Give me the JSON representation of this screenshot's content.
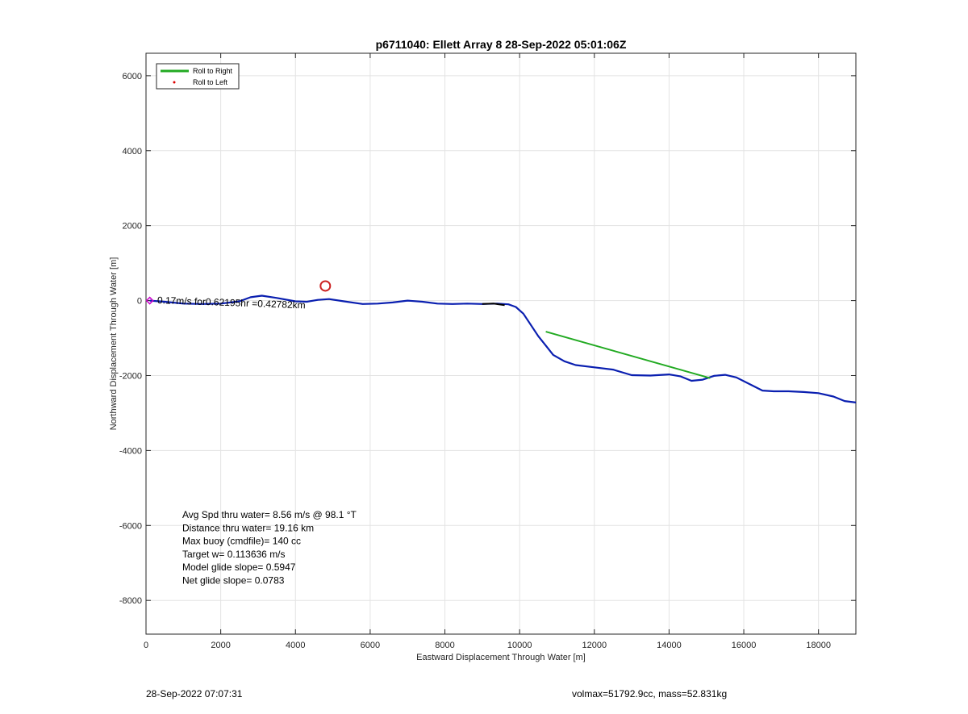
{
  "chart_data": {
    "type": "line",
    "title": "p6711040: Ellett Array 8 28-Sep-2022 05:01:06Z",
    "xlabel": "Eastward Displacement Through Water [m]",
    "ylabel": "Northward Displacement Through Water [m]",
    "xlim": [
      0,
      19000
    ],
    "ylim": [
      -8900,
      6600
    ],
    "xticks": [
      0,
      2000,
      4000,
      6000,
      8000,
      10000,
      12000,
      14000,
      16000,
      18000
    ],
    "yticks": [
      -8000,
      -6000,
      -4000,
      -2000,
      0,
      2000,
      4000,
      6000
    ],
    "grid": true,
    "legend": {
      "location": "top-left",
      "entries": [
        {
          "label": "Roll to Right",
          "color": "#22aa22",
          "marker": "line"
        },
        {
          "label": "Roll to Left",
          "color": "#dd0000",
          "marker": "dot"
        }
      ]
    },
    "series": [
      {
        "color": "#0a1fb0",
        "x": [
          100,
          500,
          1000,
          1500,
          2000,
          2500,
          2800,
          3100,
          3500,
          4000,
          4300,
          4600,
          4900,
          5300,
          5800,
          6200,
          6600,
          7000,
          7400,
          7800,
          8200,
          8600,
          9000,
          9400,
          9700,
          9900,
          10100,
          10300,
          10500,
          10700,
          10900,
          11200,
          11500,
          12000,
          12500,
          13000,
          13500,
          14000,
          14300,
          14600,
          14900,
          15200,
          15500,
          15800,
          16200,
          16500,
          16800,
          17200,
          17600,
          18000,
          18400,
          18700,
          19000
        ],
        "y": [
          0,
          -30,
          -80,
          -90,
          -80,
          -20,
          90,
          130,
          70,
          -20,
          -30,
          20,
          40,
          -20,
          -90,
          -80,
          -50,
          0,
          -30,
          -80,
          -90,
          -80,
          -90,
          -80,
          -100,
          -170,
          -350,
          -650,
          -950,
          -1200,
          -1450,
          -1620,
          -1720,
          -1780,
          -1840,
          -1990,
          -2000,
          -1970,
          -2020,
          -2140,
          -2110,
          -2010,
          -1980,
          -2050,
          -2250,
          -2400,
          -2420,
          -2420,
          -2440,
          -2470,
          -2560,
          -2680,
          -2720
        ]
      },
      {
        "color": "#22aa22",
        "x": [
          10700,
          15100
        ],
        "y": [
          -830,
          -2070
        ]
      },
      {
        "color": "#000000",
        "x": [
          9000,
          9300,
          9600
        ],
        "y": [
          -90,
          -80,
          -120
        ]
      }
    ],
    "markers": [
      {
        "x": 4800,
        "y": 390,
        "shape": "circle",
        "color": "#cc2222"
      },
      {
        "x": 100,
        "y": 0,
        "shape": "diamond",
        "color": "#cc00cc"
      }
    ],
    "annotations": [
      {
        "text": "0.17m/s for0.62195hr =0.42782km",
        "x": 300,
        "y": -30
      }
    ],
    "stats": [
      "Avg Spd thru water=  8.56 m/s @  98.1 °T",
      "Distance thru water= 19.16 km",
      "Max buoy (cmdfile)= 140 cc",
      "Target w= 0.113636 m/s",
      "Model glide slope= 0.5947",
      "Net glide slope= 0.0783"
    ]
  },
  "footer": {
    "left": "28-Sep-2022 07:07:31",
    "right": "volmax=51792.9cc, mass=52.831kg"
  }
}
